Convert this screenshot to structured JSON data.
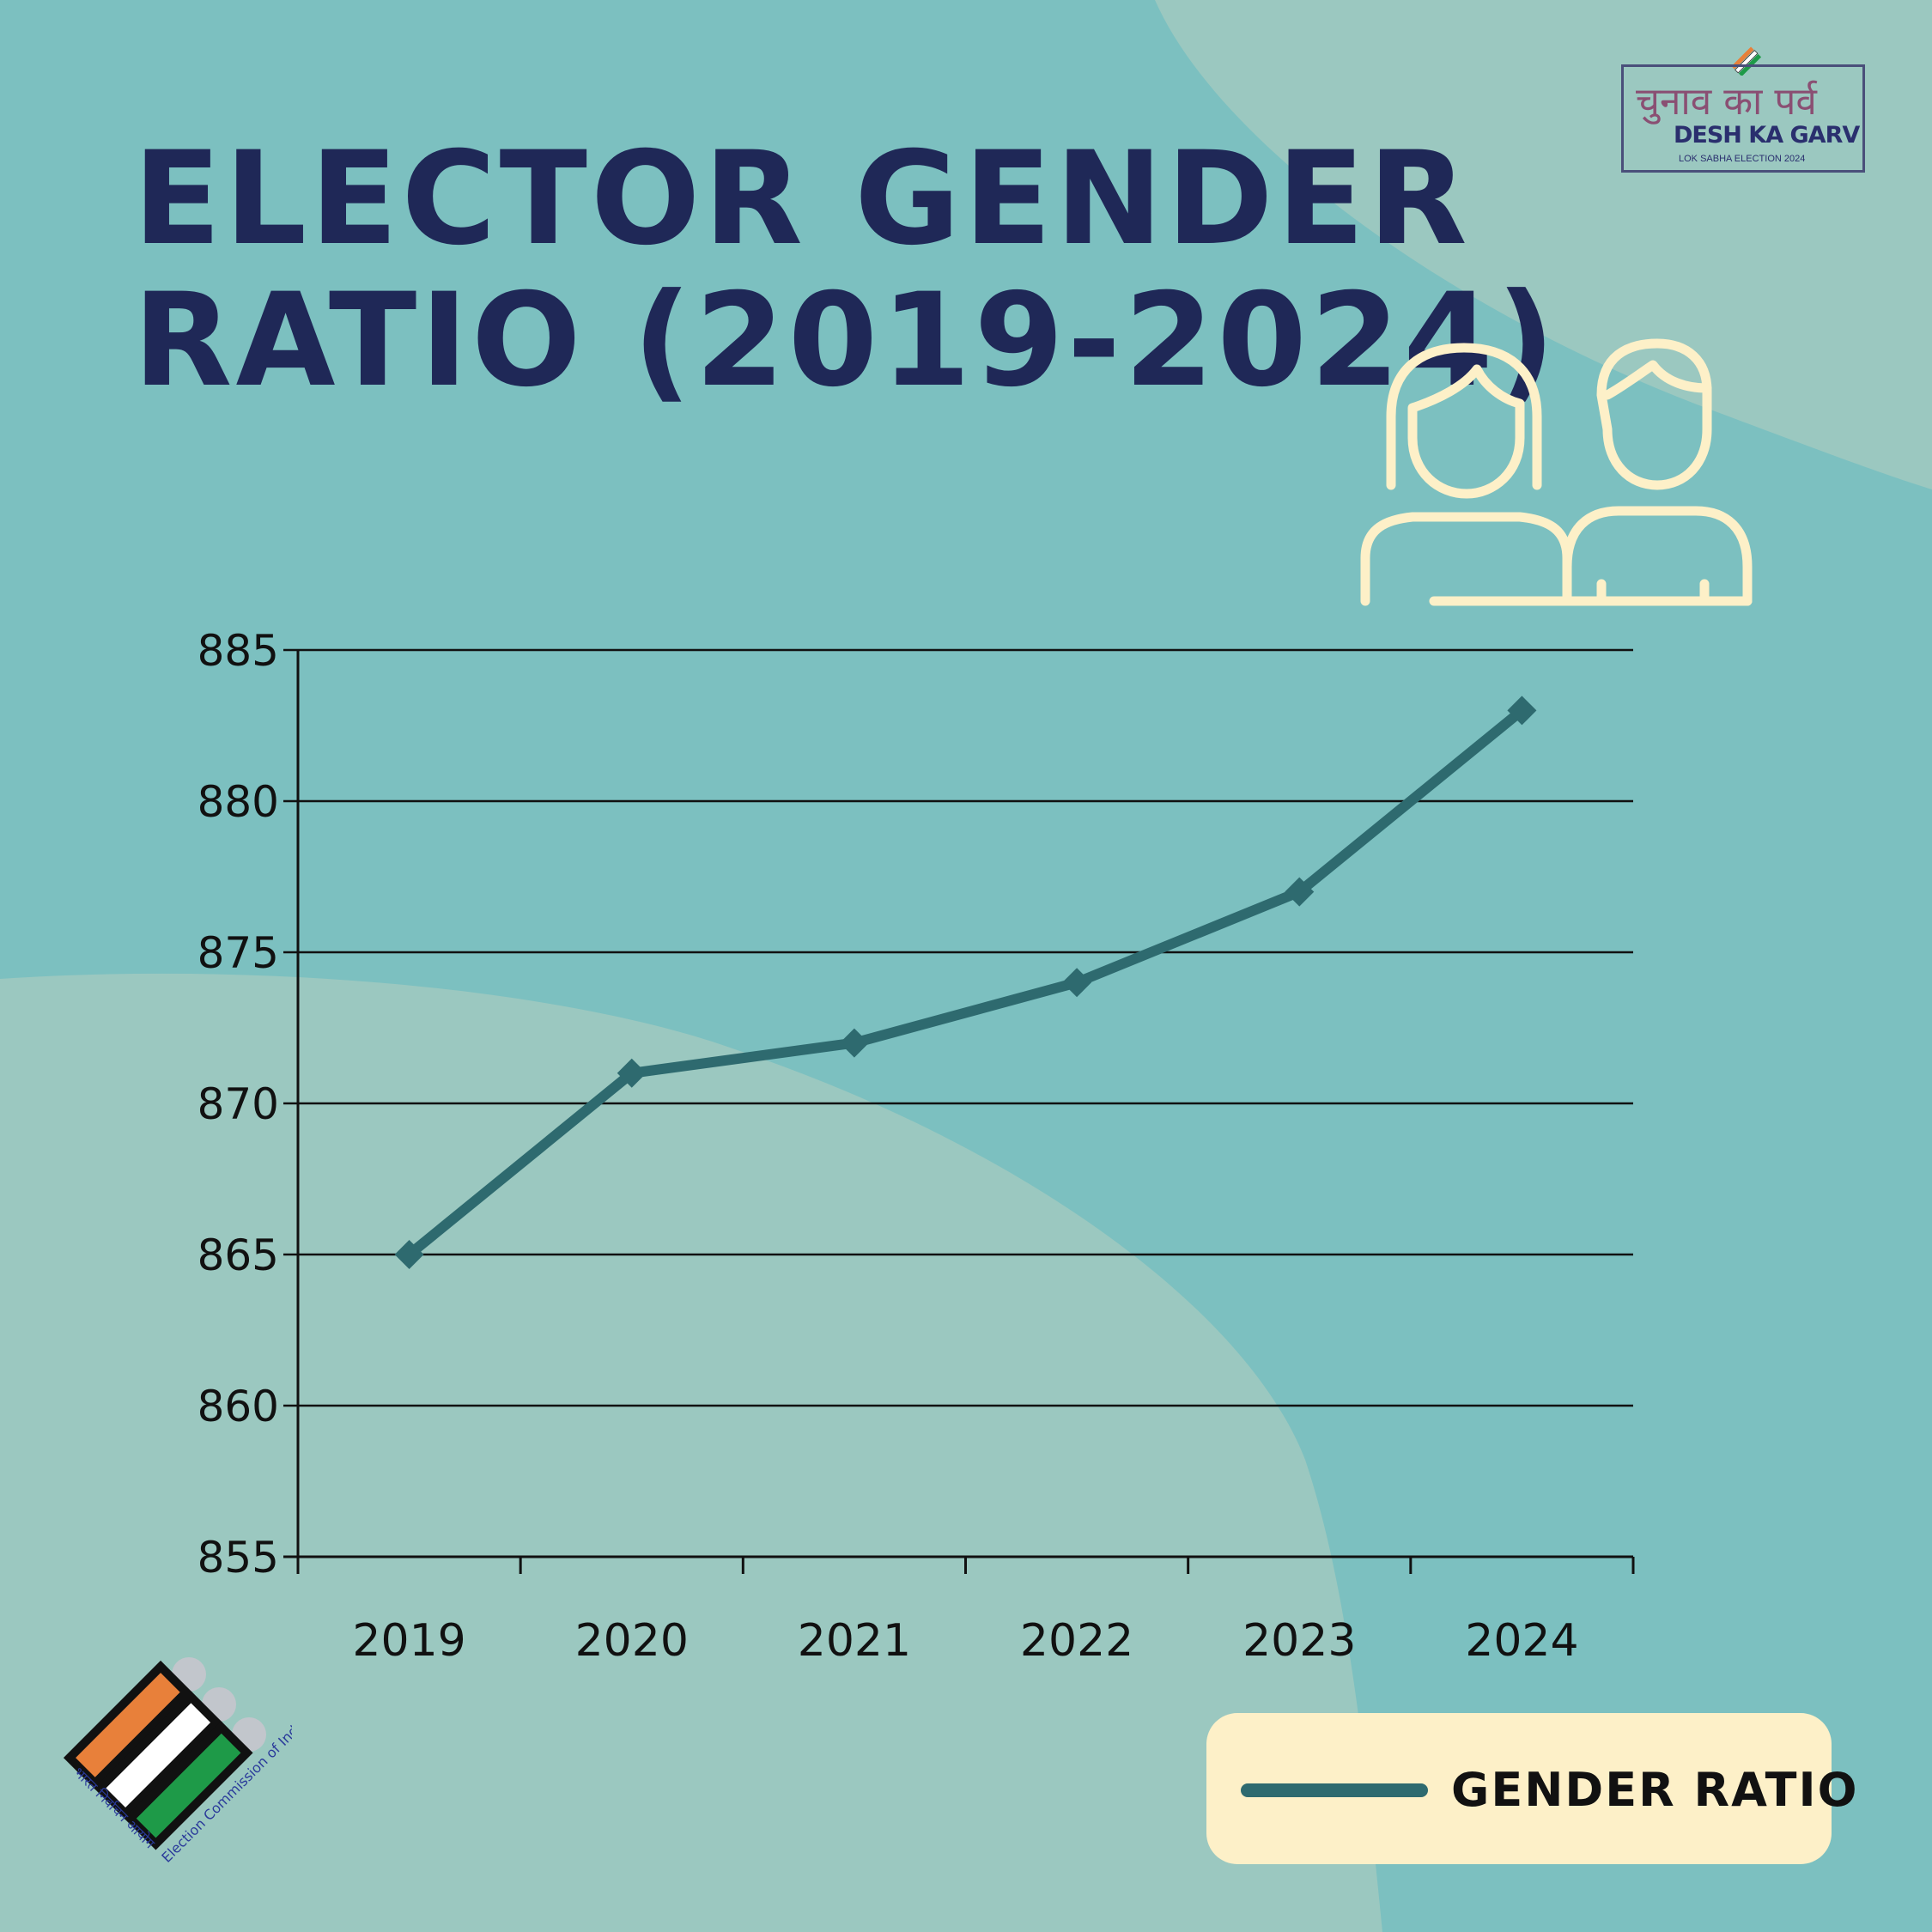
{
  "title": {
    "line1": "ELECTOR GENDER",
    "line2": "RATIO (2019-2024)"
  },
  "brand": {
    "hindi_text": "चुनाव का पर्व",
    "name": "DESH KA GARV",
    "tagline": "LOK SABHA ELECTION 2024",
    "eci_hindi": "भारत निर्वाचन आयोग",
    "eci_english": "Election Commission of India"
  },
  "colors": {
    "background": "#7cc0c0",
    "background_light": "#9bc8c0",
    "title": "#1f2857",
    "series_line": "#2e6a6f",
    "legend_bg": "#fdf0c8",
    "icon": "#fdf0c8"
  },
  "icons": [
    "woman-icon",
    "man-icon",
    "ballot-emblem-icon",
    "eci-logo-icon"
  ],
  "chart_data": {
    "type": "line",
    "title": "ELECTOR GENDER RATIO (2019-2024)",
    "xlabel": "",
    "ylabel": "",
    "categories": [
      "2019",
      "2020",
      "2021",
      "2022",
      "2023",
      "2024"
    ],
    "series": [
      {
        "name": "GENDER RATIO",
        "values": [
          865,
          871,
          872,
          874,
          877,
          883
        ]
      }
    ],
    "ylim": [
      855,
      885
    ],
    "yticks": [
      "855",
      "860",
      "865",
      "870",
      "875",
      "880",
      "885"
    ],
    "grid": true,
    "legend": "bottom-right",
    "marker": "diamond"
  }
}
